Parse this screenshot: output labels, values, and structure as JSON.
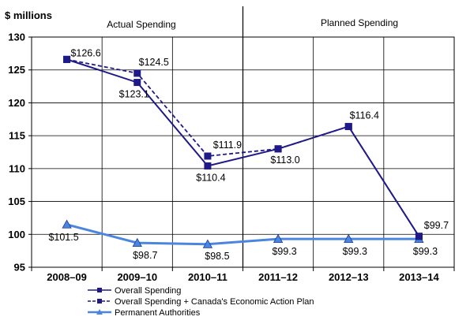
{
  "chart_data": {
    "type": "line",
    "unit_label": "$ millions",
    "section_labels": [
      "Actual Spending",
      "Planned Spending"
    ],
    "categories": [
      "2008–09",
      "2009–10",
      "2010–11",
      "2011–12",
      "2012–13",
      "2013–14"
    ],
    "ylim": [
      95,
      130
    ],
    "yticks": [
      95,
      100,
      105,
      110,
      115,
      120,
      125,
      130
    ],
    "grid": true,
    "legend_position": "bottom",
    "series": [
      {
        "name": "Overall Spending",
        "values": [
          126.6,
          123.1,
          110.4,
          113.0,
          116.4,
          99.7
        ],
        "labels": [
          "",
          "$123.1",
          "$110.4",
          "$113.0",
          "$116.4",
          "$99.7"
        ],
        "color": "#1f1a87",
        "line_style": "solid",
        "marker": "square"
      },
      {
        "name": "Overall Spending + Canada's Economic Action Plan",
        "values": [
          126.6,
          124.5,
          111.9,
          113.0,
          116.4,
          99.7
        ],
        "labels": [
          "$126.6",
          "$124.5",
          "$111.9",
          "",
          "",
          ""
        ],
        "color": "#1f1a87",
        "line_style": "dashed",
        "marker": "square"
      },
      {
        "name": "Permanent Authorities",
        "values": [
          101.5,
          98.7,
          98.5,
          99.3,
          99.3,
          99.3
        ],
        "labels": [
          "$101.5",
          "$98.7",
          "$98.5",
          "$99.3",
          "$99.3",
          "$99.3"
        ],
        "color": "#4a86e0",
        "line_style": "solid",
        "marker": "triangle"
      }
    ]
  }
}
